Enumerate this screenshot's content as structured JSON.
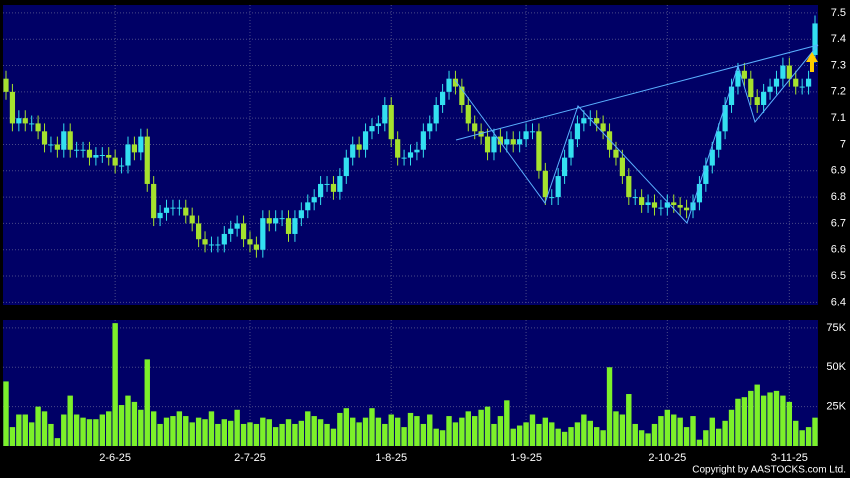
{
  "chart_data": [
    {
      "type": "candlestick",
      "open": [
        7.25,
        7.2,
        7.08,
        7.1,
        7.08,
        7.08,
        7.05,
        7.0,
        7.0,
        6.98,
        7.05,
        6.98,
        6.98,
        6.98,
        6.95,
        6.96,
        6.96,
        6.95,
        6.92,
        6.92,
        7.0,
        6.97,
        7.03,
        6.85,
        6.72,
        6.74,
        6.76,
        6.76,
        6.76,
        6.73,
        6.7,
        6.64,
        6.62,
        6.62,
        6.62,
        6.66,
        6.68,
        6.7,
        6.64,
        6.62,
        6.6,
        6.72,
        6.7,
        6.72,
        6.72,
        6.66,
        6.72,
        6.75,
        6.78,
        6.8,
        6.85,
        6.85,
        6.82,
        6.88,
        6.95,
        7.0,
        6.98,
        7.05,
        7.07,
        7.08,
        7.15,
        7.02,
        6.95,
        6.95,
        6.97,
        6.98,
        7.05,
        7.08,
        7.15,
        7.2,
        7.25,
        7.22,
        7.15,
        7.08,
        7.05,
        7.03,
        6.97,
        7.03,
        7.0,
        7.02,
        7.0,
        7.02,
        7.05,
        7.05,
        6.9,
        6.8,
        6.8,
        6.88,
        6.95,
        7.02,
        7.08,
        7.1,
        7.1,
        7.08,
        7.05,
        6.98,
        6.95,
        6.88,
        6.8,
        6.8,
        6.77,
        6.78,
        6.76,
        6.76,
        6.78,
        6.77,
        6.76,
        6.75,
        6.78,
        6.85,
        6.92,
        6.98,
        7.05,
        7.15,
        7.22,
        7.28,
        7.25,
        7.18,
        7.15,
        7.2,
        7.22,
        7.25,
        7.3,
        7.25,
        7.22,
        7.22,
        7.34
      ],
      "high": [
        7.28,
        7.23,
        7.13,
        7.13,
        7.11,
        7.11,
        7.08,
        7.03,
        7.03,
        7.08,
        7.08,
        7.01,
        7.01,
        7.01,
        6.99,
        6.99,
        6.99,
        6.98,
        6.95,
        7.03,
        7.03,
        7.06,
        7.06,
        6.88,
        6.77,
        6.79,
        6.79,
        6.79,
        6.79,
        6.76,
        6.73,
        6.67,
        6.65,
        6.65,
        6.69,
        6.71,
        6.73,
        6.73,
        6.67,
        6.65,
        6.75,
        6.75,
        6.75,
        6.75,
        6.75,
        6.75,
        6.78,
        6.81,
        6.83,
        6.88,
        6.88,
        6.88,
        6.91,
        6.98,
        7.03,
        7.03,
        7.08,
        7.1,
        7.11,
        7.18,
        7.18,
        7.05,
        6.98,
        7.0,
        7.01,
        7.08,
        7.11,
        7.18,
        7.23,
        7.28,
        7.28,
        7.25,
        7.18,
        7.11,
        7.08,
        7.06,
        7.06,
        7.06,
        7.05,
        7.05,
        7.05,
        7.08,
        7.08,
        7.08,
        6.93,
        6.83,
        6.91,
        6.98,
        7.05,
        7.11,
        7.13,
        7.13,
        7.13,
        7.11,
        7.08,
        7.01,
        6.98,
        6.91,
        6.83,
        6.83,
        6.81,
        6.81,
        6.79,
        6.81,
        6.81,
        6.8,
        6.79,
        6.81,
        6.88,
        6.95,
        7.01,
        7.08,
        7.18,
        7.25,
        7.31,
        7.31,
        7.28,
        7.21,
        7.23,
        7.25,
        7.28,
        7.33,
        7.33,
        7.28,
        7.25,
        7.28,
        7.49
      ],
      "low": [
        7.17,
        7.05,
        7.05,
        7.05,
        7.05,
        7.02,
        6.97,
        6.97,
        6.95,
        6.95,
        6.95,
        6.95,
        6.95,
        6.92,
        6.92,
        6.93,
        6.92,
        6.89,
        6.89,
        6.89,
        6.94,
        6.94,
        6.82,
        6.69,
        6.69,
        6.71,
        6.73,
        6.73,
        6.7,
        6.67,
        6.61,
        6.59,
        6.59,
        6.59,
        6.59,
        6.63,
        6.65,
        6.61,
        6.59,
        6.57,
        6.57,
        6.67,
        6.67,
        6.69,
        6.63,
        6.63,
        6.69,
        6.72,
        6.75,
        6.77,
        6.82,
        6.79,
        6.79,
        6.85,
        6.92,
        6.95,
        6.95,
        7.02,
        7.04,
        7.05,
        6.99,
        6.92,
        6.92,
        6.92,
        6.94,
        6.95,
        7.02,
        7.05,
        7.12,
        7.17,
        7.19,
        7.12,
        7.05,
        7.02,
        7.0,
        6.94,
        6.94,
        6.97,
        6.97,
        6.97,
        6.97,
        6.99,
        7.02,
        6.87,
        6.77,
        6.77,
        6.77,
        6.85,
        6.92,
        6.99,
        7.05,
        7.07,
        7.05,
        7.02,
        6.95,
        6.92,
        6.85,
        6.77,
        6.77,
        6.74,
        6.74,
        6.73,
        6.73,
        6.73,
        6.74,
        6.73,
        6.72,
        6.72,
        6.75,
        6.82,
        6.89,
        6.95,
        7.02,
        7.12,
        7.19,
        7.22,
        7.15,
        7.12,
        7.12,
        7.17,
        7.19,
        7.22,
        7.22,
        7.19,
        7.19,
        7.19,
        7.31
      ],
      "close": [
        7.2,
        7.08,
        7.1,
        7.08,
        7.08,
        7.05,
        7.0,
        7.0,
        6.98,
        7.05,
        6.98,
        6.98,
        6.98,
        6.95,
        6.96,
        6.96,
        6.95,
        6.92,
        6.92,
        7.0,
        6.97,
        7.03,
        6.85,
        6.72,
        6.74,
        6.76,
        6.76,
        6.76,
        6.73,
        6.7,
        6.64,
        6.62,
        6.62,
        6.62,
        6.66,
        6.68,
        6.7,
        6.64,
        6.62,
        6.6,
        6.72,
        6.7,
        6.72,
        6.72,
        6.66,
        6.72,
        6.75,
        6.78,
        6.8,
        6.85,
        6.85,
        6.82,
        6.88,
        6.95,
        7.0,
        6.98,
        7.05,
        7.07,
        7.08,
        7.15,
        7.02,
        6.95,
        6.95,
        6.97,
        6.98,
        7.05,
        7.08,
        7.15,
        7.2,
        7.25,
        7.22,
        7.15,
        7.08,
        7.05,
        7.03,
        6.97,
        7.03,
        7.0,
        7.02,
        7.0,
        7.02,
        7.05,
        7.05,
        6.9,
        6.8,
        6.8,
        6.88,
        6.95,
        7.02,
        7.08,
        7.1,
        7.1,
        7.08,
        7.05,
        6.98,
        6.95,
        6.88,
        6.8,
        6.8,
        6.77,
        6.78,
        6.76,
        6.76,
        6.78,
        6.77,
        6.76,
        6.75,
        6.78,
        6.85,
        6.92,
        6.98,
        7.05,
        7.15,
        7.22,
        7.28,
        7.25,
        7.18,
        7.15,
        7.2,
        7.22,
        7.25,
        7.3,
        7.25,
        7.22,
        7.22,
        7.25,
        7.46
      ],
      "up_color": "#33e0f0",
      "down_color": "#a6e22e",
      "ylim": [
        6.39,
        7.53
      ],
      "yticks": [
        6.4,
        6.5,
        6.6,
        6.7,
        6.8,
        6.9,
        7,
        7.1,
        7.2,
        7.3,
        7.4,
        7.5
      ],
      "grid": true
    },
    {
      "type": "bar",
      "categories": [
        null,
        null,
        null,
        null,
        null,
        null,
        null,
        null,
        null,
        null,
        null,
        null,
        null,
        null,
        null,
        null,
        null,
        "2-6-25",
        null,
        null,
        null,
        null,
        null,
        null,
        null,
        null,
        null,
        null,
        null,
        null,
        null,
        null,
        null,
        null,
        null,
        null,
        null,
        null,
        "2-7-25",
        null,
        null,
        null,
        null,
        null,
        null,
        null,
        null,
        null,
        null,
        null,
        null,
        null,
        null,
        null,
        null,
        null,
        null,
        null,
        null,
        null,
        "1-8-25",
        null,
        null,
        null,
        null,
        null,
        null,
        null,
        null,
        null,
        null,
        null,
        null,
        null,
        null,
        null,
        null,
        null,
        null,
        null,
        null,
        "1-9-25",
        null,
        null,
        null,
        null,
        null,
        null,
        null,
        null,
        null,
        null,
        null,
        null,
        null,
        null,
        null,
        null,
        null,
        null,
        null,
        null,
        null,
        "2-10-25",
        null,
        null,
        null,
        null,
        null,
        null,
        null,
        null,
        null,
        null,
        null,
        null,
        null,
        null,
        null,
        null,
        null,
        null,
        "3-11-25",
        null,
        null,
        null,
        null
      ],
      "values": [
        41000,
        12000,
        20000,
        20000,
        15000,
        25000,
        22000,
        14000,
        5000,
        20000,
        32000,
        20000,
        18000,
        17000,
        17000,
        20000,
        22000,
        78000,
        26000,
        32000,
        28000,
        23000,
        55000,
        22000,
        14000,
        18000,
        19000,
        22000,
        19000,
        15000,
        18000,
        17000,
        22000,
        14000,
        17000,
        16000,
        23000,
        14000,
        15000,
        14000,
        18000,
        17000,
        12000,
        14000,
        17000,
        14000,
        16000,
        22000,
        19000,
        17000,
        14000,
        11000,
        21000,
        24000,
        18000,
        15000,
        18000,
        24000,
        18000,
        14000,
        20000,
        18000,
        12000,
        21000,
        19000,
        14000,
        20000,
        11000,
        10000,
        19000,
        15000,
        18000,
        22000,
        19000,
        23000,
        25000,
        14000,
        19000,
        29000,
        11000,
        13000,
        15000,
        20000,
        14000,
        18000,
        15000,
        11000,
        9000,
        12000,
        15000,
        20000,
        16000,
        12000,
        10000,
        50000,
        22000,
        20000,
        33000,
        14000,
        10000,
        8000,
        14000,
        19000,
        23000,
        20000,
        18000,
        12000,
        19000,
        4000,
        10000,
        18000,
        11000,
        16000,
        23000,
        30000,
        31000,
        35000,
        39000,
        32000,
        34000,
        35000,
        32000,
        28000,
        16000,
        10000,
        12000,
        18000
      ],
      "color": "#7cf02a",
      "ylim": [
        0,
        80000
      ],
      "yticks": [
        {
          "value": 25000,
          "label": "25K"
        },
        {
          "value": 50000,
          "label": "50K"
        },
        {
          "value": 75000,
          "label": "75K"
        }
      ],
      "grid": true,
      "footer": "Copyright by AASTOCKS.com Ltd."
    }
  ]
}
